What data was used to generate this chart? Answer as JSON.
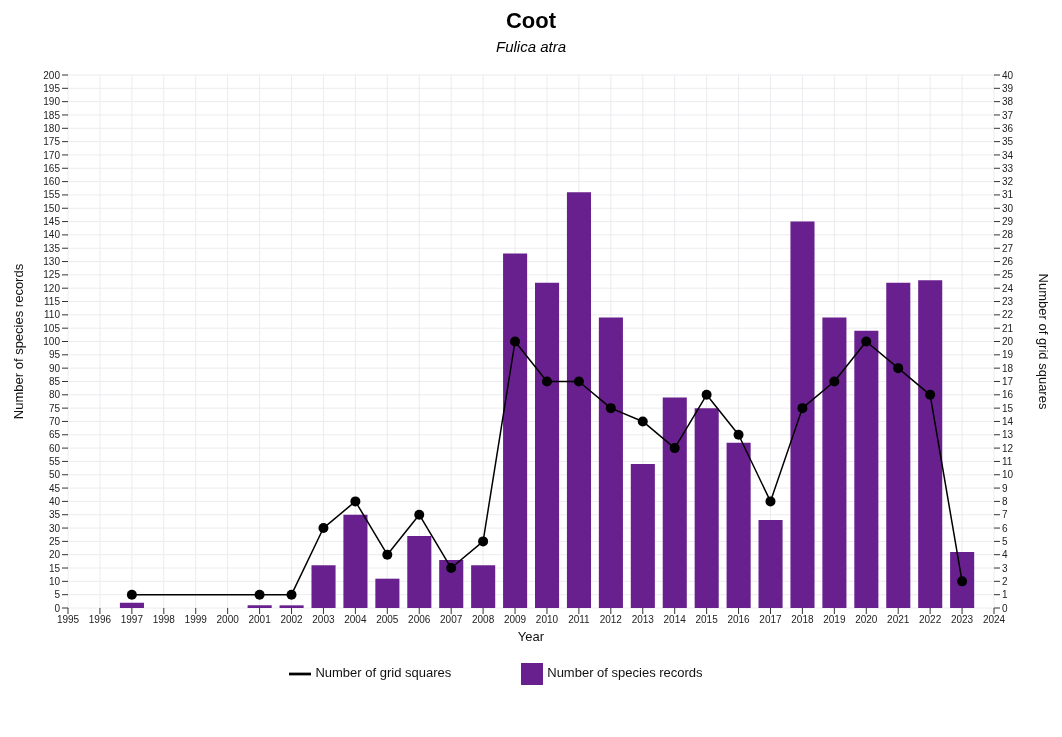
{
  "chart_data": {
    "type": "bar",
    "title": "Coot",
    "subtitle": "Fulica atra",
    "xlabel": "Year",
    "ylabel": "Number of species records",
    "y2label": "Number of grid squares",
    "x": [
      1997,
      2001,
      2002,
      2003,
      2004,
      2005,
      2006,
      2007,
      2008,
      2009,
      2010,
      2011,
      2012,
      2013,
      2014,
      2015,
      2016,
      2017,
      2018,
      2019,
      2020,
      2021,
      2022,
      2023
    ],
    "series": [
      {
        "name": "Number of species records",
        "color": "#68208e",
        "values": [
          2,
          1,
          1,
          16,
          35,
          11,
          27,
          18,
          16,
          133,
          122,
          156,
          109,
          54,
          79,
          75,
          62,
          33,
          145,
          109,
          104,
          122,
          123,
          21
        ]
      },
      {
        "name": "Number of grid squares",
        "type": "line",
        "axis": "y2",
        "color": "#000000",
        "marker": "circle",
        "values": [
          1,
          1,
          1,
          6,
          8,
          4,
          7,
          3,
          5,
          20,
          17,
          17,
          15,
          14,
          12,
          16,
          13,
          8,
          15,
          17,
          20,
          18,
          16,
          2
        ]
      }
    ],
    "xlim": [
      1995,
      2024
    ],
    "xticks": [
      1995,
      1996,
      1997,
      1998,
      1999,
      2000,
      2001,
      2002,
      2003,
      2004,
      2005,
      2006,
      2007,
      2008,
      2009,
      2010,
      2011,
      2012,
      2013,
      2014,
      2015,
      2016,
      2017,
      2018,
      2019,
      2020,
      2021,
      2022,
      2023,
      2024
    ],
    "ylim": [
      0,
      200
    ],
    "yticks": [
      0,
      5,
      10,
      15,
      20,
      25,
      30,
      35,
      40,
      45,
      50,
      55,
      60,
      65,
      70,
      75,
      80,
      85,
      90,
      95,
      100,
      105,
      110,
      115,
      120,
      125,
      130,
      135,
      140,
      145,
      150,
      155,
      160,
      165,
      170,
      175,
      180,
      185,
      190,
      195,
      200
    ],
    "y2lim": [
      0,
      40
    ],
    "y2ticks": [
      0,
      1,
      2,
      3,
      4,
      5,
      6,
      7,
      8,
      9,
      10,
      11,
      12,
      13,
      14,
      15,
      16,
      17,
      18,
      19,
      20,
      21,
      22,
      23,
      24,
      25,
      26,
      27,
      28,
      29,
      30,
      31,
      32,
      33,
      34,
      35,
      36,
      37,
      38,
      39,
      40
    ],
    "grid": true,
    "legend": "bottom"
  }
}
